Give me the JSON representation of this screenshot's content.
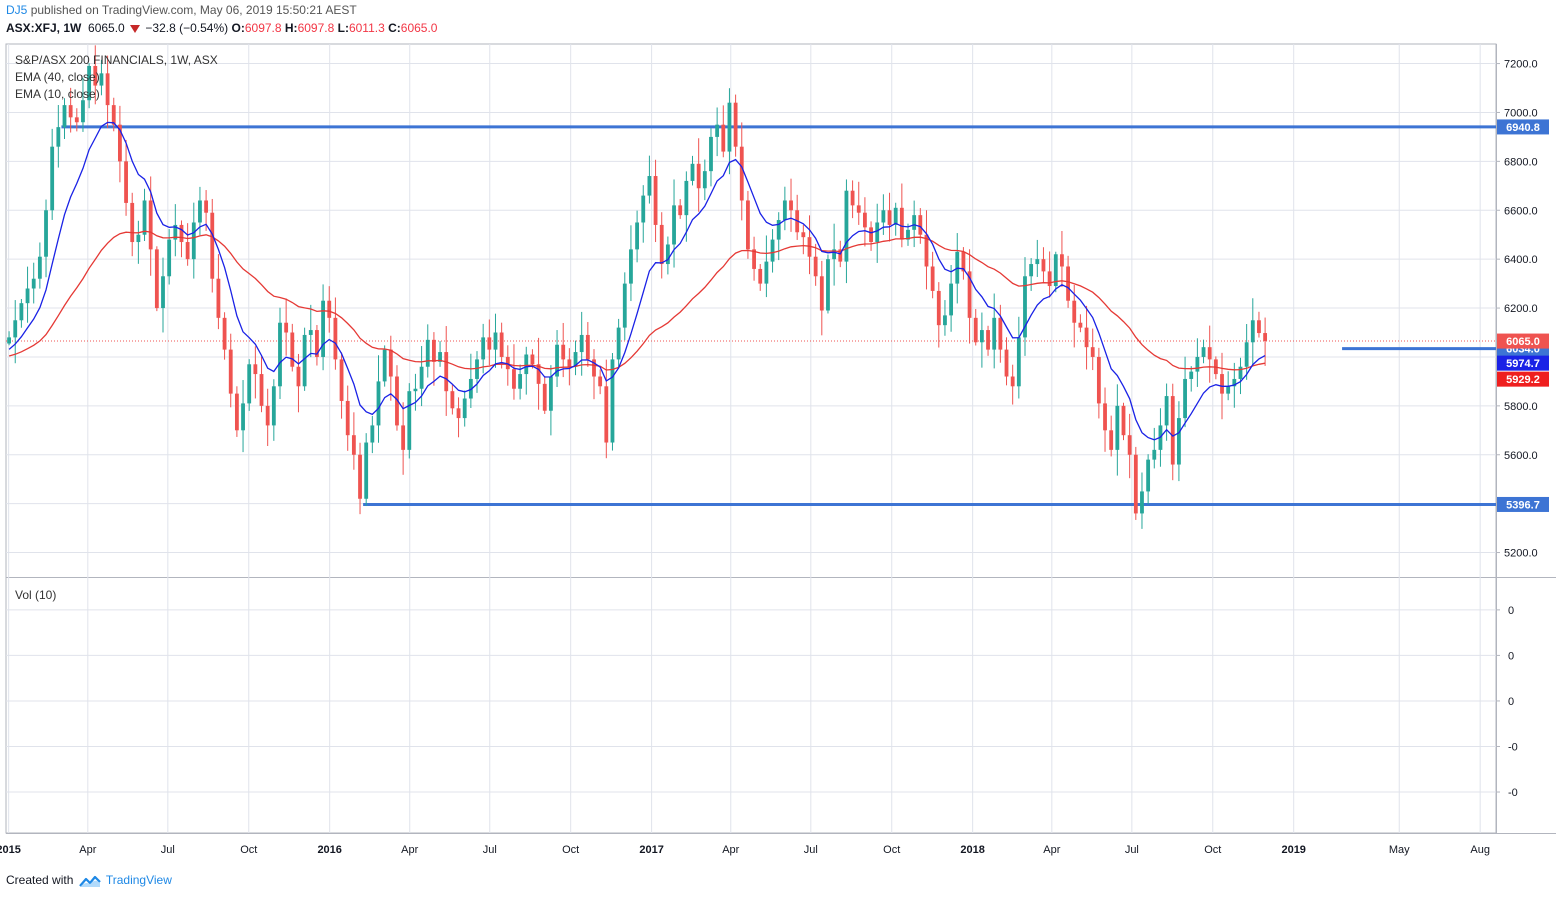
{
  "header": {
    "author": "DJ5",
    "published": "published on TradingView.com, May 06, 2019 15:50:21 AEST"
  },
  "quote": {
    "symbol": "ASX:XFJ, 1W",
    "last": "6065.0",
    "change": "−32.8 (−0.54%)",
    "o_label": "O:",
    "o": "6097.8",
    "h_label": "H:",
    "h": "6097.8",
    "l_label": "L:",
    "l": "6011.3",
    "c_label": "C:",
    "c": "6065.0"
  },
  "legend": {
    "title": "S&P/ASX 200 FINANCIALS, 1W, ASX",
    "ema40": "EMA (40, close)",
    "ema10": "EMA (10, close)",
    "vol": "Vol (10)"
  },
  "footer": {
    "created": "Created with",
    "brand": "TradingView"
  },
  "colors": {
    "up": "#26a69a",
    "down": "#ef5350",
    "ema10": "#1a22e6",
    "ema40": "#e53935",
    "hline": "#3d74d4",
    "grid": "#e0e3eb",
    "axis": "#555555"
  },
  "chart_data": {
    "type": "candlestick",
    "symbol": "ASX:XFJ",
    "interval": "1W",
    "price_axis": {
      "ylim": [
        5100,
        7280
      ],
      "ticks": [
        5200,
        5400,
        5600,
        5800,
        6000,
        6200,
        6400,
        6600,
        6800,
        7000,
        7200
      ],
      "tick_labels": [
        "5200.0",
        "5400.0",
        "5600.0",
        "5800.0",
        "6000.0",
        "6200.0",
        "6400.0",
        "6600.0",
        "6800.0",
        "7000.0",
        "7200.0"
      ]
    },
    "time_axis": {
      "range": [
        "2014-12-29",
        "2019-08-19"
      ],
      "ticks": [
        {
          "date": "2015-01-01",
          "label": "2015",
          "bold": true
        },
        {
          "date": "2015-04-01",
          "label": "Apr"
        },
        {
          "date": "2015-07-01",
          "label": "Jul"
        },
        {
          "date": "2015-10-01",
          "label": "Oct"
        },
        {
          "date": "2016-01-01",
          "label": "2016",
          "bold": true
        },
        {
          "date": "2016-04-01",
          "label": "Apr"
        },
        {
          "date": "2016-07-01",
          "label": "Jul"
        },
        {
          "date": "2016-10-01",
          "label": "Oct"
        },
        {
          "date": "2017-01-01",
          "label": "2017",
          "bold": true
        },
        {
          "date": "2017-04-01",
          "label": "Apr"
        },
        {
          "date": "2017-07-01",
          "label": "Jul"
        },
        {
          "date": "2017-10-01",
          "label": "Oct"
        },
        {
          "date": "2018-01-01",
          "label": "2018",
          "bold": true
        },
        {
          "date": "2018-04-01",
          "label": "Apr"
        },
        {
          "date": "2018-07-01",
          "label": "Jul"
        },
        {
          "date": "2018-10-01",
          "label": "Oct"
        },
        {
          "date": "2019-01-01",
          "label": "2019",
          "bold": true
        },
        {
          "date": "2019-05-01",
          "label": "May"
        },
        {
          "date": "2019-08-01",
          "label": "Aug"
        }
      ]
    },
    "closes": [
      6080,
      6150,
      6220,
      6280,
      6320,
      6410,
      6600,
      6860,
      6940,
      7030,
      6980,
      6960,
      7050,
      7190,
      7110,
      7160,
      7030,
      6950,
      6800,
      6630,
      6470,
      6500,
      6640,
      6440,
      6200,
      6330,
      6480,
      6540,
      6470,
      6400,
      6550,
      6640,
      6590,
      6320,
      6160,
      6030,
      5850,
      5700,
      5810,
      5970,
      5930,
      5800,
      5720,
      5880,
      6140,
      6100,
      5960,
      5880,
      6090,
      6110,
      6000,
      6230,
      6160,
      5990,
      5820,
      5680,
      5600,
      5420,
      5650,
      5720,
      5900,
      6030,
      5920,
      5720,
      5620,
      5860,
      5870,
      5960,
      6070,
      5980,
      6020,
      5860,
      5790,
      5750,
      5830,
      5910,
      5990,
      6080,
      6030,
      6100,
      6000,
      5950,
      5870,
      5930,
      6010,
      5970,
      5890,
      5780,
      5920,
      6050,
      5990,
      5960,
      6020,
      6090,
      5990,
      5920,
      5880,
      5650,
      5990,
      6120,
      6300,
      6440,
      6550,
      6660,
      6740,
      6540,
      6380,
      6460,
      6620,
      6580,
      6720,
      6790,
      6690,
      6760,
      6900,
      6950,
      6840,
      7040,
      6860,
      6640,
      6440,
      6360,
      6300,
      6390,
      6480,
      6560,
      6640,
      6600,
      6510,
      6490,
      6410,
      6330,
      6190,
      6400,
      6440,
      6390,
      6680,
      6620,
      6590,
      6530,
      6470,
      6550,
      6600,
      6540,
      6610,
      6480,
      6520,
      6580,
      6500,
      6370,
      6270,
      6130,
      6170,
      6300,
      6430,
      6350,
      6160,
      6060,
      6110,
      6030,
      6160,
      6030,
      5920,
      5880,
      6080,
      6330,
      6380,
      6400,
      6350,
      6290,
      6420,
      6370,
      6230,
      6140,
      6120,
      6040,
      6000,
      5810,
      5700,
      5620,
      5800,
      5680,
      5600,
      5360,
      5450,
      5580,
      5620,
      5720,
      5840,
      5560,
      5750,
      5910,
      5940,
      6000,
      6040,
      5990,
      5930,
      5850,
      5880,
      5910,
      5960,
      6060,
      6150,
      6097.8,
      6065
    ],
    "ema10_last": 5974.7,
    "ema40_last": 5929.2,
    "series": [
      {
        "name": "EMA (10, close)",
        "period": 10,
        "color": "#1a22e6"
      },
      {
        "name": "EMA (40, close)",
        "period": 40,
        "color": "#e53935"
      }
    ],
    "horizontal_lines": [
      {
        "value": 6940.8,
        "label": "6940.8",
        "from": "2015-03-02",
        "color": "#3d74d4"
      },
      {
        "value": 5396.7,
        "label": "5396.7",
        "from": "2016-02-08",
        "color": "#3d74d4"
      },
      {
        "value": 6034.0,
        "label": "6034.0",
        "from": "2019-02-25",
        "color": "#3d74d4"
      }
    ],
    "price_tags": [
      {
        "value": 6065.0,
        "label": "6065.0",
        "color": "#ef5350"
      },
      {
        "value": 5974.7,
        "label": "5974.7",
        "color": "#1a22e6"
      },
      {
        "value": 5929.2,
        "label": "5929.2",
        "color": "#ef1f1f"
      }
    ],
    "volume": {
      "title": "Vol (10)",
      "tick_labels": [
        "0",
        "0",
        "0",
        "-0",
        "-0"
      ]
    }
  }
}
